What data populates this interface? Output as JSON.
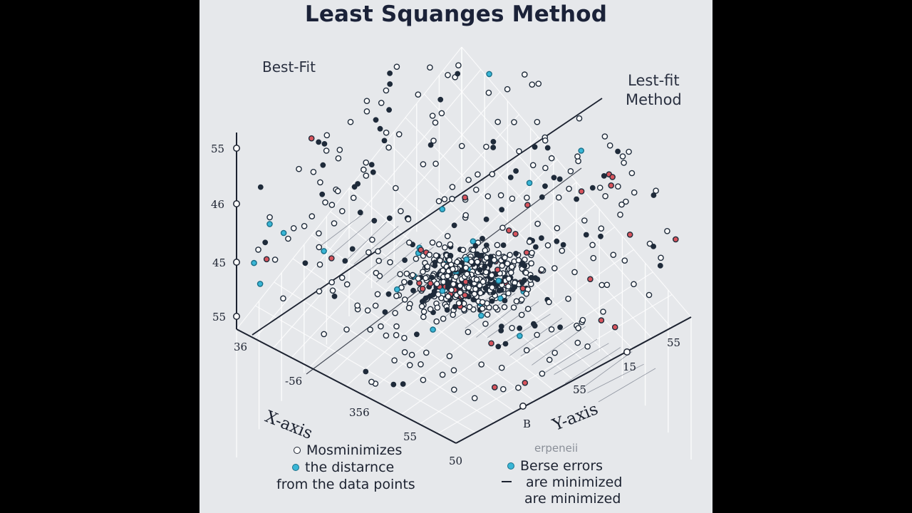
{
  "colors": {
    "background": "#e6e8eb",
    "point_white": "#ffffff",
    "point_dark": "#1f2b3a",
    "point_red": "#d8545c",
    "point_cyan": "#39b6d6",
    "line": "#1c2230",
    "grid": "#ffffff"
  },
  "chart_data": {
    "type": "scatter",
    "title": "Least Squanges Method",
    "annotations": [
      "Best-Fit",
      "Lest-fit",
      "Method"
    ],
    "xlabel": "X-axis",
    "ylabel": "Y-axis",
    "vertical_axis_ticks": [
      "55",
      "46",
      "45",
      "55",
      "36"
    ],
    "x_axis_ticks": [
      "-56",
      "356",
      "55",
      "50"
    ],
    "y_axis_ticks": [
      "55",
      "15",
      "55",
      "B"
    ],
    "projection": "3d",
    "grid": true,
    "point_count_approx": 900,
    "best_fit_line": true,
    "legend": {
      "placement": "bottom",
      "left": [
        "Mosminimizes",
        "the distarnce",
        "from the data points"
      ],
      "right": [
        "erpeneii",
        "Berse errors",
        "are minimized",
        "are minimized"
      ]
    }
  }
}
